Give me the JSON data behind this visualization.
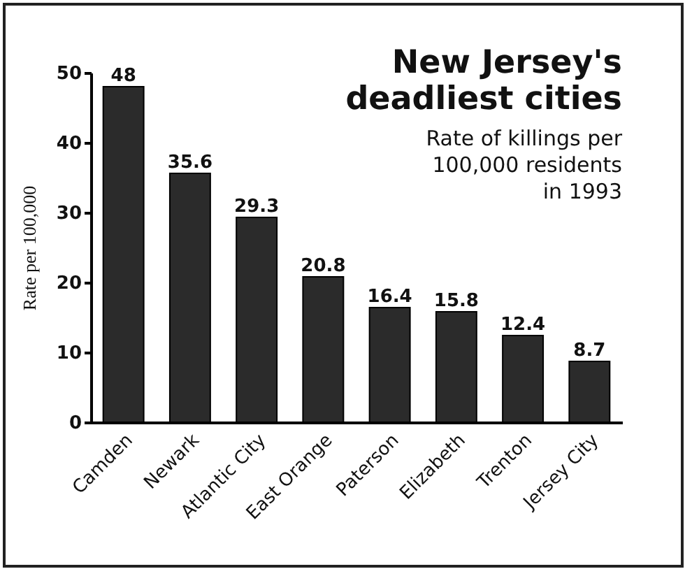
{
  "chart_data": {
    "type": "bar",
    "title": "New Jersey's\ndeadliest cities",
    "subtitle": "Rate of killings per\n100,000 residents\nin 1993",
    "ylabel": "Rate per 100,000",
    "categories": [
      "Camden",
      "Newark",
      "Atlantic City",
      "East Orange",
      "Paterson",
      "Elizabeth",
      "Trenton",
      "Jersey City"
    ],
    "values": [
      48,
      35.6,
      29.3,
      20.8,
      16.4,
      15.8,
      12.4,
      8.7
    ],
    "color": "#2b2b2b",
    "ylim": [
      0,
      50
    ],
    "yticks": [
      0,
      10,
      20,
      30,
      40,
      50
    ],
    "grid": false,
    "data_labels": true
  }
}
